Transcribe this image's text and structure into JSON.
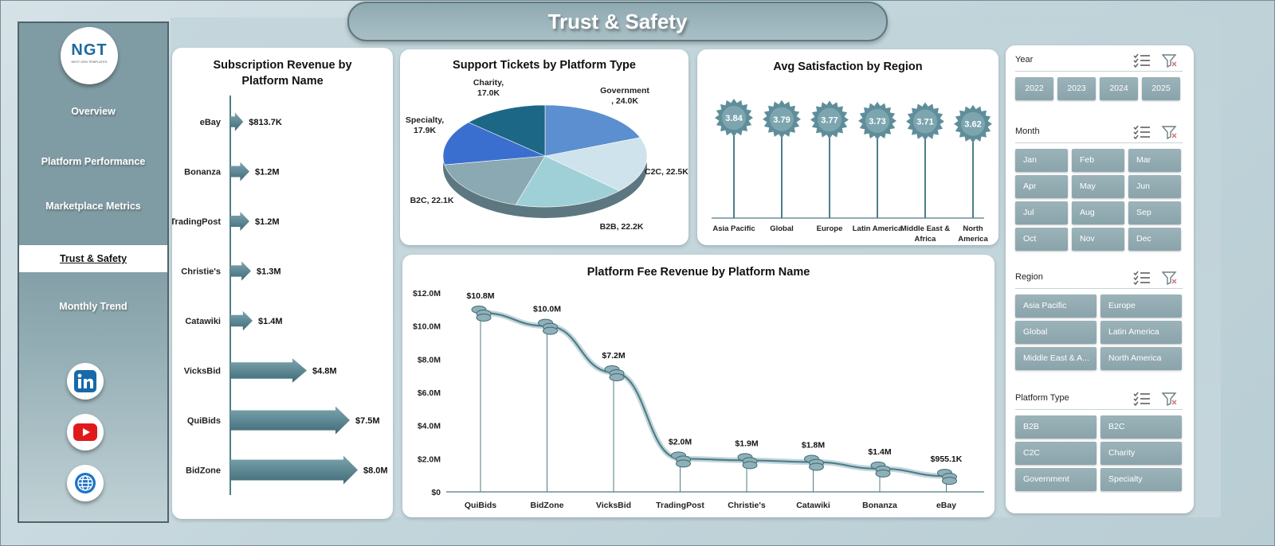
{
  "header": {
    "title": "Trust & Safety"
  },
  "logo": {
    "text": "NGT",
    "subtext": "NEXT GEN TEMPLATES"
  },
  "nav": [
    {
      "label": "Overview",
      "active": false
    },
    {
      "label": "Platform Performance",
      "active": false
    },
    {
      "label": "Marketplace Metrics",
      "active": false
    },
    {
      "label": "Trust & Safety",
      "active": true
    },
    {
      "label": "Monthly Trend",
      "active": false
    }
  ],
  "social": [
    "linkedin-icon",
    "youtube-icon",
    "globe-icon"
  ],
  "colors": {
    "accent": "#4f7d89",
    "slicer": "#93abb2",
    "sidebar": "#7f9ba3"
  },
  "chart_data": [
    {
      "id": "subscription",
      "type": "bar",
      "title": "Subscription Revenue by Platform Name",
      "title_lines": [
        "Subscription Revenue by",
        "Platform Name"
      ],
      "categories": [
        "eBay",
        "Bonanza",
        "TradingPost",
        "Christie's",
        "Catawiki",
        "VicksBid",
        "QuiBids",
        "BidZone"
      ],
      "values": [
        813.7,
        1200,
        1200,
        1300,
        1400,
        4800,
        7500,
        8000
      ],
      "labels": [
        "$813.7K",
        "$1.2M",
        "$1.2M",
        "$1.3M",
        "$1.4M",
        "$4.8M",
        "$7.5M",
        "$8.0M"
      ],
      "unit": "$K"
    },
    {
      "id": "tickets",
      "type": "pie",
      "title": "Support Tickets by Platform Type",
      "slices": [
        {
          "name": "Government",
          "value": 24.0,
          "label": "Government , 24.0K",
          "color": "#5b8fcf"
        },
        {
          "name": "C2C",
          "value": 22.5,
          "label": "C2C, 22.5K",
          "color": "#cfe3ec"
        },
        {
          "name": "B2B",
          "value": 22.2,
          "label": "B2B, 22.2K",
          "color": "#9fd0d8"
        },
        {
          "name": "B2C",
          "value": 22.1,
          "label": "B2C, 22.1K",
          "color": "#8aa9b2"
        },
        {
          "name": "Specialty",
          "value": 17.9,
          "label": "Specialty, 17.9K",
          "color": "#3b6fcf"
        },
        {
          "name": "Charity",
          "value": 17.0,
          "label": "Charity, 17.0K",
          "color": "#1d6786"
        }
      ]
    },
    {
      "id": "satisfaction",
      "type": "scatter",
      "title": "Avg Satisfaction by Region",
      "categories": [
        "Asia Pacific",
        "Global",
        "Europe",
        "Latin America",
        "Middle East & Africa",
        "North America"
      ],
      "values": [
        3.84,
        3.79,
        3.77,
        3.73,
        3.71,
        3.62
      ]
    },
    {
      "id": "platform-fee",
      "type": "line",
      "title": "Platform Fee Revenue by Platform Name",
      "categories": [
        "QuiBids",
        "BidZone",
        "VicksBid",
        "TradingPost",
        "Christie's",
        "Catawiki",
        "Bonanza",
        "eBay"
      ],
      "values": [
        10.8,
        10.0,
        7.2,
        2.0,
        1.9,
        1.8,
        1.4,
        0.9551
      ],
      "labels": [
        "$10.8M",
        "$10.0M",
        "$7.2M",
        "$2.0M",
        "$1.9M",
        "$1.8M",
        "$1.4M",
        "$955.1K"
      ],
      "y_ticks": [
        "$0",
        "$2.0M",
        "$4.0M",
        "$6.0M",
        "$8.0M",
        "$10.0M",
        "$12.0M"
      ],
      "ylim": [
        0,
        12
      ],
      "unit": "$M"
    }
  ],
  "slicers": [
    {
      "label": "Year",
      "items": [
        "2022",
        "2023",
        "2024",
        "2025"
      ]
    },
    {
      "label": "Month",
      "items": [
        "Jan",
        "Feb",
        "Mar",
        "Apr",
        "May",
        "Jun",
        "Jul",
        "Aug",
        "Sep",
        "Oct",
        "Nov",
        "Dec"
      ]
    },
    {
      "label": "Region",
      "items": [
        "Asia Pacific",
        "Europe",
        "Global",
        "Latin America",
        "Middle East & A...",
        "North America"
      ]
    },
    {
      "label": "Platform Type",
      "items": [
        "B2B",
        "B2C",
        "C2C",
        "Charity",
        "Government",
        "Specialty"
      ]
    }
  ]
}
